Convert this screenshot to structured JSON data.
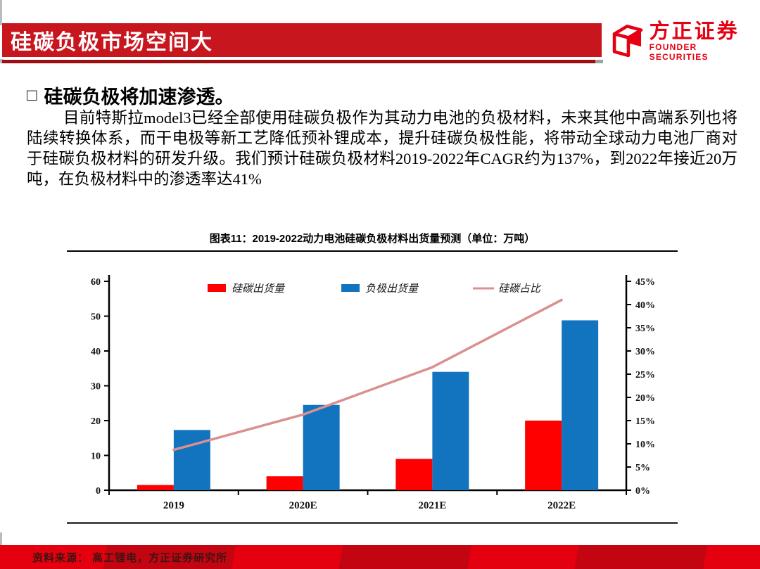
{
  "header": {
    "title": "硅碳负极市场空间大",
    "logo_cn": "方正证券",
    "logo_en": "FOUNDER SECURITIES",
    "bar_color": "#c8161e",
    "underline_color": "#9b0f13",
    "logo_color": "#e60012"
  },
  "content": {
    "bullet": "□",
    "heading": "硅碳负极将加速渗透。",
    "paragraph": "目前特斯拉model3已经全部使用硅碳负极作为其动力电池的负极材料，未来其他中高端系列也将陆续转换体系，而干电极等新工艺降低预补锂成本，提升硅碳负极性能，将带动全球动力电池厂商对于硅碳负极材料的研发升级。我们预计硅碳负极材料2019-2022年CAGR约为137%，到2022年接近20万吨，在负极材料中的渗透率达41%"
  },
  "chart": {
    "title": "图表11：2019-2022动力电池硅碳负极材料出货量预测（单位：万吨）"
  },
  "chart_data": {
    "type": "bar",
    "subtype": "grouped bars with secondary-axis line",
    "title": "图表11：2019-2022动力电池硅碳负极材料出货量预测（单位：万吨）",
    "categories": [
      "2019",
      "2020E",
      "2021E",
      "2022E"
    ],
    "series": [
      {
        "name": "硅碳出货量",
        "type": "bar",
        "axis": "left",
        "color": "#fe0000",
        "values": [
          1.5,
          4,
          9,
          20
        ]
      },
      {
        "name": "负极出货量",
        "type": "bar",
        "axis": "left",
        "color": "#1274bf",
        "values": [
          17.3,
          24.5,
          34,
          48.8
        ]
      },
      {
        "name": "硅碳占比",
        "type": "line",
        "axis": "right",
        "color": "#d9908f",
        "values_pct": [
          8.7,
          16.3,
          26.5,
          41
        ]
      }
    ],
    "left_axis": {
      "min": 0,
      "max": 60,
      "step": 10,
      "ticks": [
        "0",
        "10",
        "20",
        "30",
        "40",
        "50",
        "60"
      ]
    },
    "right_axis": {
      "min": 0,
      "max": 45,
      "step": 5,
      "ticks": [
        "0%",
        "5%",
        "10%",
        "15%",
        "20%",
        "25%",
        "30%",
        "35%",
        "40%",
        "45%"
      ]
    },
    "legend_position": "top-inside",
    "grid": false
  },
  "footer": {
    "source": "资料来源：  高工锂电，方正证券研究所"
  }
}
